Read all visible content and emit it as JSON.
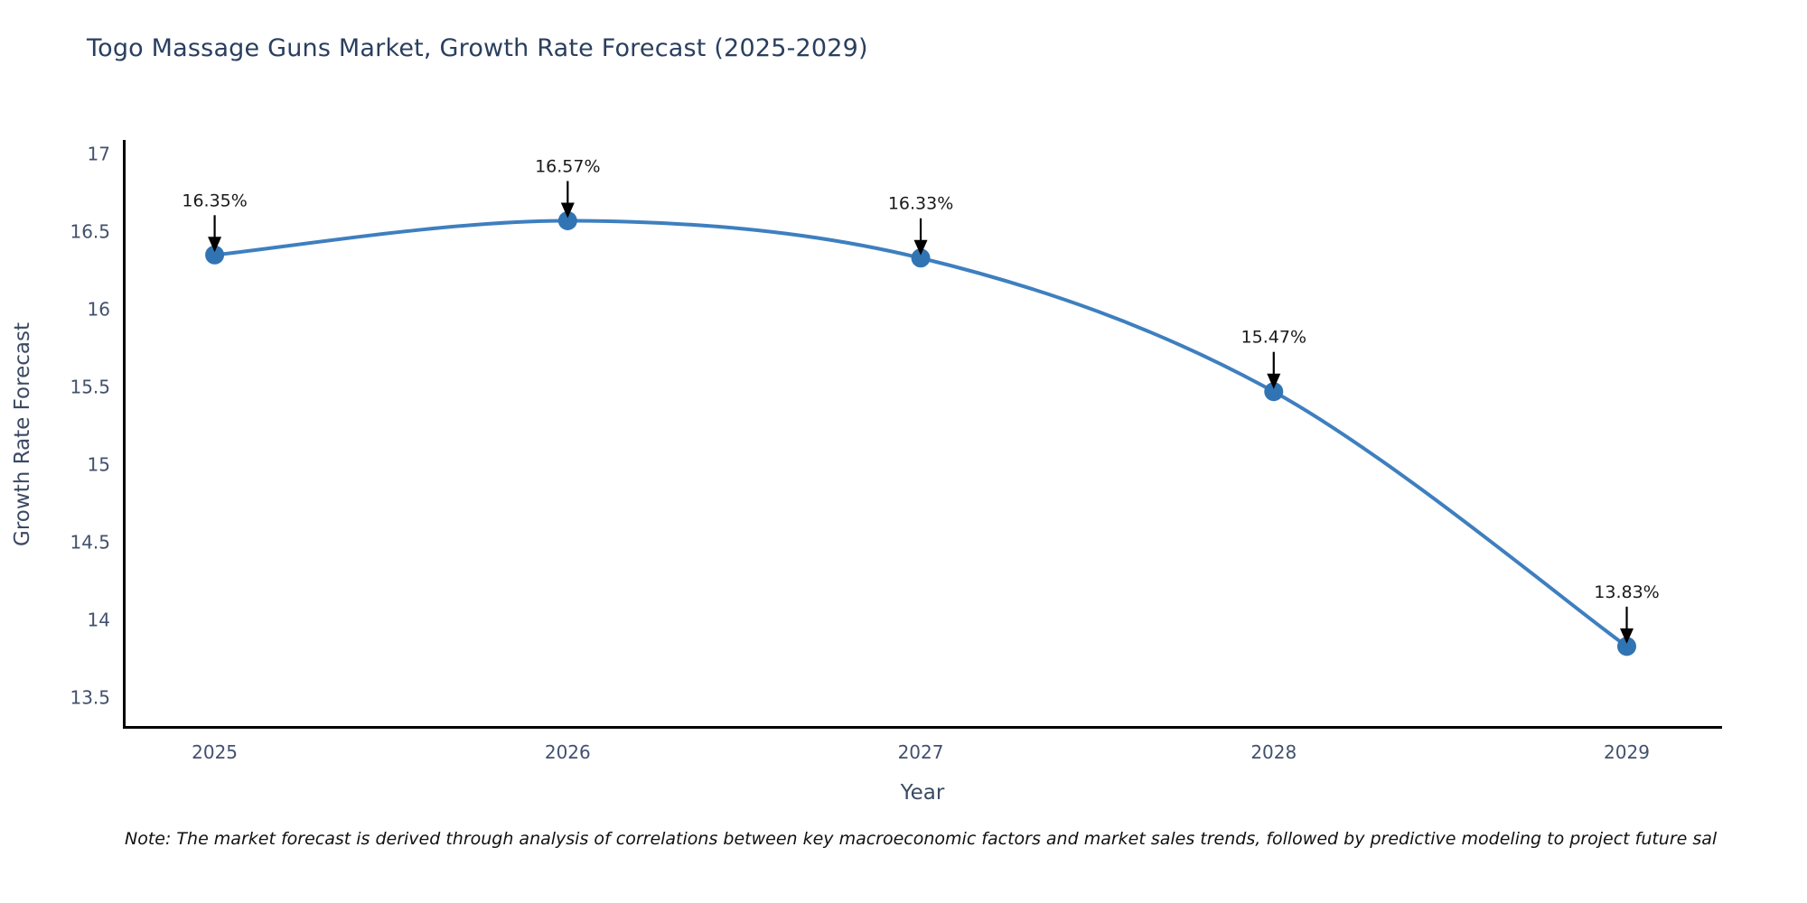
{
  "page": {
    "note": "Note: The market forecast is derived through analysis of correlations between key macroeconomic factors and market sales trends, followed by predictive modeling to project future sal"
  },
  "chart_data": {
    "type": "line",
    "title": "Togo Massage Guns Market, Growth Rate Forecast (2025-2029)",
    "xlabel": "Year",
    "ylabel": "Growth Rate Forecast",
    "x": [
      2025,
      2026,
      2027,
      2028,
      2029
    ],
    "series": [
      {
        "name": "Growth Rate Forecast",
        "values": [
          16.35,
          16.57,
          16.33,
          15.47,
          13.83
        ]
      }
    ],
    "point_labels": [
      "16.35%",
      "16.57%",
      "16.33%",
      "15.47%",
      "13.83%"
    ],
    "y_ticks": [
      13.5,
      14,
      14.5,
      15,
      15.5,
      16,
      16.5,
      17
    ],
    "x_ticks": [
      2025,
      2026,
      2027,
      2028,
      2029
    ],
    "xlim": [
      2024.74,
      2029.27
    ],
    "ylim": [
      13.3,
      17.09
    ],
    "grid": false,
    "legend_position": "none",
    "line_shape": "spline",
    "marker": "circle",
    "annotation_arrows": true,
    "colors": {
      "line": "#3e7fbf",
      "marker": "#3174b3",
      "axis_line": "#000000",
      "title_text": "#2a3f5f",
      "axis_title_text": "#3b4a63",
      "tick_text": "#42516d",
      "annotation_text": "#1a1a1a",
      "arrow": "#000000",
      "background": "#ffffff"
    }
  }
}
